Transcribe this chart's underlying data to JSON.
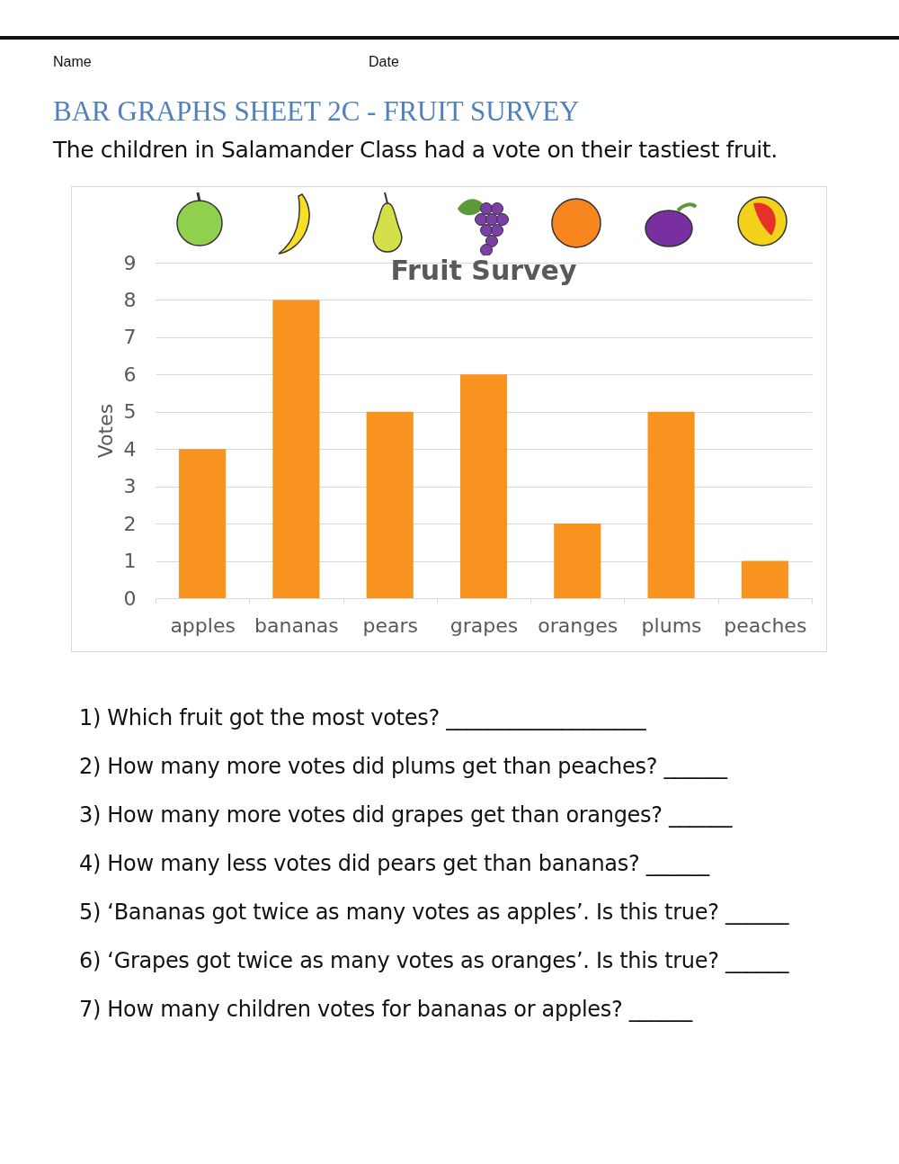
{
  "chart_data": {
    "type": "bar",
    "title": "Fruit Survey",
    "ylabel": "Votes",
    "categories": [
      "apples",
      "bananas",
      "pears",
      "grapes",
      "oranges",
      "plums",
      "peaches"
    ],
    "values": [
      4,
      8,
      5,
      6,
      2,
      5,
      1
    ],
    "color": "#f7931e",
    "ylim": [
      0,
      9
    ],
    "yticks": [
      0,
      1,
      2,
      3,
      4,
      5,
      6,
      7,
      8,
      9
    ],
    "grid": "y",
    "annotations": [
      "Name",
      "Date",
      "BAR GRAPHS SHEET 2C - FRUIT SURVEY",
      "The children in Salamander Class had a vote on their tastiest fruit.",
      "1) Which fruit got the most votes? ___________________",
      "2) How many more votes did plums get than peaches? ______",
      "3) How many more votes did grapes get than oranges? ______",
      "4) How many less votes did pears get than bananas? ______",
      "5) ‘Bananas got twice as many votes as apples’. Is this true? ______",
      "6) ‘Grapes got twice as many votes as oranges’. Is this true? ______",
      "7) How many children votes for bananas or apples? ______"
    ]
  }
}
